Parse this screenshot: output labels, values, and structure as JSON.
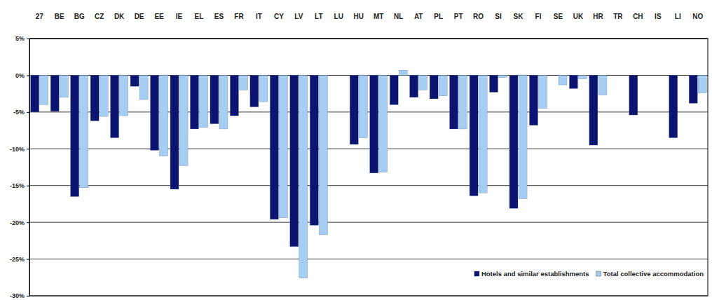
{
  "chart_data": {
    "type": "bar",
    "categories": [
      "27",
      "BE",
      "BG",
      "CZ",
      "DK",
      "DE",
      "EE",
      "IE",
      "EL",
      "ES",
      "FR",
      "IT",
      "CY",
      "LV",
      "LT",
      "LU",
      "HU",
      "MT",
      "NL",
      "AT",
      "PL",
      "PT",
      "RO",
      "SI",
      "SK",
      "FI",
      "SE",
      "UK",
      "HR",
      "TR",
      "CH",
      "IS",
      "LI",
      "NO"
    ],
    "series": [
      {
        "name": "Hotels and similar establishments",
        "color": "#0b1470",
        "values": [
          -5.0,
          -4.9,
          -16.5,
          -6.2,
          -8.5,
          -1.5,
          -10.2,
          -15.5,
          -7.3,
          -6.6,
          -5.5,
          -4.3,
          -19.6,
          -23.3,
          -20.4,
          null,
          -9.4,
          -13.3,
          -4.0,
          -3.0,
          -3.2,
          -7.3,
          -16.4,
          -2.3,
          -18.1,
          -6.8,
          null,
          -1.8,
          -9.5,
          null,
          -5.4,
          null,
          -8.5,
          -3.8
        ]
      },
      {
        "name": "Total collective accommodation",
        "color": "#a6cdf2",
        "values": [
          -4.0,
          -3.0,
          -15.3,
          -5.6,
          -5.5,
          -3.3,
          -11.0,
          -12.3,
          -7.1,
          -7.3,
          -2.0,
          -3.6,
          -19.4,
          -27.6,
          -21.7,
          null,
          -8.5,
          -13.2,
          0.7,
          -2.0,
          -2.8,
          -7.3,
          -16.0,
          -0.3,
          -16.8,
          -4.5,
          -1.3,
          -0.5,
          -2.7,
          null,
          null,
          null,
          null,
          -2.4
        ]
      }
    ],
    "ylim": [
      -30,
      5
    ],
    "yticks": [
      {
        "value": -30,
        "label": "-30%"
      },
      {
        "value": -25,
        "label": "-25%"
      },
      {
        "value": -20,
        "label": "-20%"
      },
      {
        "value": -15,
        "label": "-15%"
      },
      {
        "value": -10,
        "label": "-10%"
      },
      {
        "value": -5,
        "label": "-5%"
      },
      {
        "value": 0,
        "label": "0%"
      },
      {
        "value": 5,
        "label": "5%"
      }
    ],
    "grid": true,
    "legend": "lower right"
  }
}
